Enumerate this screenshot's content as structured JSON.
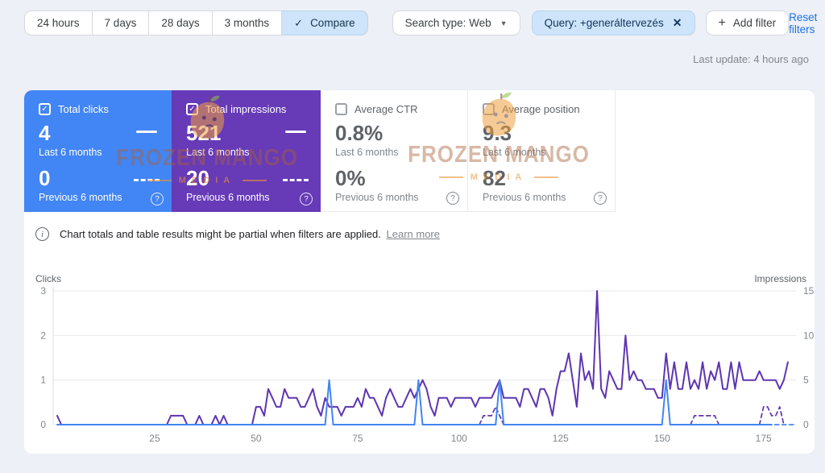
{
  "toolbar": {
    "ranges": [
      "24 hours",
      "7 days",
      "28 days",
      "3 months"
    ],
    "compare_label": "Compare",
    "search_type": "Search type: Web",
    "query_chip": "Query: +generáltervezés",
    "add_filter": "Add filter",
    "reset_filters": "Reset filters"
  },
  "last_update": "Last update: 4 hours ago",
  "cards": [
    {
      "label": "Total clicks",
      "value": "4",
      "period": "Last 6 months",
      "prev_value": "0",
      "prev_period": "Previous 6 months",
      "checked": true,
      "color": "#4285f4"
    },
    {
      "label": "Total impressions",
      "value": "521",
      "period": "Last 6 months",
      "prev_value": "20",
      "prev_period": "Previous 6 months",
      "checked": true,
      "color": "#673ab7"
    },
    {
      "label": "Average CTR",
      "value": "0.8%",
      "period": "Last 6 months",
      "prev_value": "0%",
      "prev_period": "Previous 6 months",
      "checked": false,
      "color": "#ffffff"
    },
    {
      "label": "Average position",
      "value": "9.3",
      "period": "Last 6 months",
      "prev_value": "82",
      "prev_period": "Previous 6 months",
      "checked": false,
      "color": "#ffffff"
    }
  ],
  "info_banner": {
    "text": "Chart totals and table results might be partial when filters are applied.",
    "link": "Learn more"
  },
  "watermark": {
    "line1": "FROZEN MANGO",
    "line2": "MEDIA"
  },
  "chart_data": {
    "type": "line",
    "x_label_ticks": [
      25,
      50,
      75,
      100,
      125,
      150,
      175
    ],
    "x_range": [
      0,
      183
    ],
    "axes": {
      "left": {
        "label": "Clicks",
        "ticks": [
          0,
          1,
          2,
          3
        ],
        "max": 3
      },
      "right": {
        "label": "Impressions",
        "ticks": [
          0,
          5,
          10,
          15
        ],
        "max": 15
      }
    },
    "grid": true,
    "series": [
      {
        "id": "impressions_previous",
        "name": "Total impressions — previous 6 months",
        "axis": "right",
        "line": "dashed",
        "color": "#5e35b1",
        "segments": [
          {
            "start_day": 105,
            "values": [
              0,
              1,
              1,
              1,
              2,
              1,
              0
            ]
          },
          {
            "start_day": 157,
            "values": [
              0,
              1,
              1,
              1,
              1,
              1,
              1,
              0
            ]
          },
          {
            "start_day": 174,
            "values": [
              0,
              2,
              2,
              1,
              1,
              2,
              0
            ]
          }
        ],
        "total": 20
      },
      {
        "id": "clicks_previous",
        "name": "Total clicks — previous 6 months",
        "axis": "left",
        "line": "dashed",
        "color": "#4285f4",
        "segments": [
          {
            "start_day": 176,
            "values": [
              0,
              0,
              0,
              0,
              0,
              0,
              0,
              0
            ]
          }
        ],
        "total": 0
      },
      {
        "id": "impressions_current",
        "name": "Total impressions — last 6 months",
        "axis": "right",
        "line": "solid",
        "color": "#5e35b1",
        "start_day": 1,
        "values": [
          1,
          0,
          0,
          0,
          0,
          0,
          0,
          0,
          0,
          0,
          0,
          0,
          0,
          0,
          0,
          0,
          0,
          0,
          0,
          0,
          0,
          0,
          0,
          0,
          0,
          0,
          0,
          0,
          1,
          1,
          1,
          1,
          0,
          0,
          0,
          1,
          0,
          0,
          0,
          1,
          0,
          1,
          0,
          0,
          0,
          0,
          0,
          0,
          0,
          2,
          2,
          1,
          4,
          3,
          2,
          2,
          4,
          3,
          3,
          3,
          2,
          2,
          3,
          4,
          2,
          1,
          3,
          2,
          2,
          2,
          1,
          2,
          2,
          2,
          3,
          2,
          4,
          3,
          3,
          2,
          1,
          3,
          4,
          3,
          2,
          2,
          3,
          4,
          3,
          4,
          5,
          4,
          2,
          1,
          3,
          3,
          3,
          2,
          3,
          3,
          3,
          3,
          3,
          2,
          3,
          3,
          3,
          3,
          4,
          5,
          3,
          3,
          3,
          3,
          2,
          4,
          4,
          3,
          2,
          4,
          4,
          3,
          1,
          4,
          6,
          6,
          8,
          5,
          2,
          8,
          5,
          6,
          4,
          15,
          4,
          3,
          6,
          5,
          4,
          4,
          10,
          5,
          6,
          5,
          5,
          4,
          4,
          4,
          3,
          3,
          8,
          4,
          7,
          4,
          4,
          7,
          4,
          5,
          4,
          7,
          4,
          6,
          5,
          7,
          4,
          4,
          7,
          4,
          7,
          5,
          5,
          5,
          5,
          6,
          5,
          5,
          5,
          5,
          4,
          5,
          7
        ],
        "total": 521
      },
      {
        "id": "clicks_current",
        "name": "Total clicks — last 6 months",
        "axis": "left",
        "line": "solid",
        "color": "#4285f4",
        "start_day": 1,
        "end_day": 177,
        "baseline": 0,
        "spikes": [
          [
            68,
            1
          ],
          [
            90,
            1
          ],
          [
            110,
            1
          ],
          [
            151,
            1
          ]
        ],
        "total": 4
      }
    ]
  }
}
